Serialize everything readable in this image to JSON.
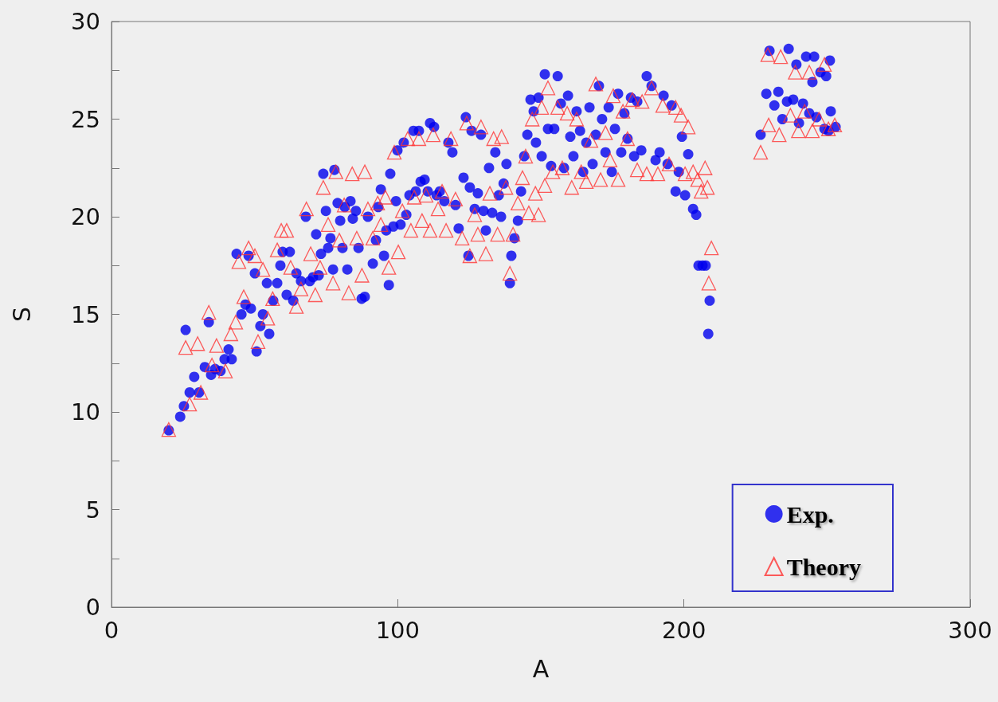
{
  "chart_data": {
    "type": "scatter",
    "xlabel": "A",
    "ylabel": "S",
    "xlim": [
      0,
      300
    ],
    "ylim": [
      0,
      30
    ],
    "xticks": [
      0,
      100,
      200,
      300
    ],
    "yticks": [
      0,
      {
        "value": 2.5,
        "label": null
      },
      5,
      {
        "value": 7.5,
        "label": null
      },
      10,
      {
        "value": 12.5,
        "label": null
      },
      15,
      {
        "value": 17.5,
        "label": null
      },
      20,
      {
        "value": 22.5,
        "label": null
      },
      25,
      {
        "value": 27.5,
        "label": null
      },
      30
    ],
    "grid": false,
    "legend": "bottom right",
    "series": [
      {
        "name": "Exp.",
        "color": "#0000ee",
        "marker": "circle",
        "x": [
          20.0,
          24.0,
          25.3,
          25.9,
          27.3,
          28.9,
          30.6,
          32.6,
          34.0,
          34.8,
          36.2,
          38.1,
          39.5,
          40.9,
          42.0,
          43.7,
          45.4,
          46.8,
          47.9,
          48.7,
          50.1,
          50.7,
          52.0,
          52.9,
          54.3,
          55.1,
          56.5,
          57.9,
          59.0,
          59.8,
          61.2,
          62.3,
          63.5,
          64.6,
          66.2,
          67.9,
          69.3,
          70.4,
          71.5,
          72.4,
          73.2,
          74.0,
          74.9,
          75.7,
          76.5,
          77.4,
          77.9,
          79.0,
          79.9,
          80.7,
          81.5,
          82.4,
          83.5,
          84.3,
          85.4,
          86.3,
          87.4,
          88.5,
          89.6,
          91.3,
          92.4,
          93.2,
          94.1,
          95.2,
          96.0,
          96.9,
          97.4,
          98.5,
          99.4,
          99.9,
          101.0,
          102.1,
          103.0,
          104.1,
          105.5,
          106.3,
          107.4,
          108.0,
          109.4,
          110.5,
          111.3,
          112.7,
          113.6,
          114.7,
          116.3,
          117.7,
          119.1,
          120.2,
          121.3,
          123.0,
          123.8,
          124.7,
          125.2,
          125.8,
          126.9,
          128.0,
          129.1,
          130.0,
          130.8,
          131.9,
          133.0,
          134.1,
          135.3,
          136.1,
          137.0,
          138.0,
          139.2,
          139.7,
          140.8,
          142.0,
          143.1,
          144.2,
          145.3,
          146.4,
          147.5,
          148.3,
          149.2,
          150.3,
          151.4,
          152.5,
          153.6,
          154.7,
          155.9,
          157.0,
          158.1,
          159.5,
          160.3,
          161.4,
          162.5,
          163.7,
          164.8,
          165.9,
          167.0,
          168.1,
          169.2,
          170.3,
          171.4,
          172.6,
          173.7,
          174.8,
          175.9,
          177.0,
          178.1,
          179.2,
          180.3,
          181.5,
          182.6,
          183.7,
          185.1,
          187.0,
          188.7,
          190.1,
          191.5,
          192.9,
          194.3,
          195.7,
          197.1,
          198.2,
          199.3,
          200.4,
          201.5,
          203.2,
          204.3,
          205.1,
          206.5,
          207.6,
          209.0,
          208.5,
          226.8,
          228.8,
          229.9,
          231.6,
          233.0,
          234.4,
          236.0,
          236.6,
          238.2,
          239.3,
          240.2,
          241.6,
          242.7,
          243.8,
          244.9,
          245.5,
          246.3,
          247.7,
          249.1,
          249.7,
          250.5,
          251.0,
          251.3,
          253.0
        ],
        "values": [
          9.06,
          9.76,
          10.3,
          14.2,
          11.0,
          11.8,
          11.0,
          12.3,
          14.6,
          11.9,
          12.2,
          12.1,
          12.7,
          13.2,
          12.7,
          18.1,
          15.0,
          15.5,
          18.0,
          15.3,
          17.1,
          13.1,
          14.4,
          15.0,
          16.6,
          14.0,
          15.7,
          16.6,
          17.5,
          18.2,
          16.0,
          18.2,
          15.7,
          17.1,
          16.7,
          20.0,
          16.7,
          16.9,
          19.1,
          17.0,
          18.1,
          22.2,
          20.3,
          18.4,
          18.9,
          17.3,
          22.4,
          20.7,
          19.8,
          18.4,
          20.5,
          17.3,
          20.8,
          19.9,
          20.3,
          18.4,
          15.8,
          15.9,
          20.0,
          17.6,
          18.8,
          20.5,
          21.4,
          18.0,
          19.3,
          16.5,
          22.2,
          19.5,
          20.8,
          23.4,
          19.6,
          23.8,
          20.1,
          21.1,
          24.4,
          21.3,
          24.4,
          21.8,
          21.9,
          21.3,
          24.8,
          24.6,
          21.1,
          21.3,
          20.8,
          23.8,
          23.3,
          20.6,
          19.4,
          22.0,
          25.1,
          18.0,
          21.5,
          24.4,
          20.4,
          21.2,
          24.2,
          20.3,
          19.3,
          22.5,
          20.2,
          23.3,
          21.1,
          20.0,
          21.7,
          22.7,
          16.6,
          18.0,
          18.9,
          19.8,
          21.3,
          23.1,
          24.2,
          26.0,
          25.4,
          23.8,
          26.1,
          23.1,
          27.3,
          24.5,
          22.6,
          24.5,
          27.2,
          25.8,
          22.5,
          26.2,
          24.1,
          23.1,
          25.4,
          24.4,
          22.3,
          23.8,
          25.6,
          22.7,
          24.2,
          26.7,
          25.0,
          23.3,
          25.6,
          22.3,
          24.5,
          26.3,
          23.3,
          25.3,
          24.0,
          26.1,
          23.1,
          25.9,
          23.4,
          27.2,
          26.7,
          22.9,
          23.3,
          26.2,
          22.7,
          25.7,
          21.3,
          22.3,
          24.1,
          21.1,
          23.2,
          20.4,
          20.1,
          17.5,
          17.5,
          17.5,
          15.7,
          14.0,
          24.2,
          26.3,
          28.5,
          25.7,
          26.4,
          25.0,
          25.9,
          28.6,
          26.0,
          27.8,
          24.8,
          25.8,
          28.2,
          25.3,
          26.9,
          28.2,
          25.1,
          27.4,
          24.5,
          27.2,
          24.4,
          28.0,
          25.4,
          24.6
        ]
      },
      {
        "name": "Theory",
        "color": "#ff3333",
        "marker": "triangle",
        "x": [
          20.0,
          25.9,
          27.3,
          30.1,
          31.2,
          34.0,
          35.1,
          36.7,
          39.8,
          41.7,
          43.4,
          44.5,
          46.2,
          47.9,
          50.1,
          51.2,
          52.9,
          54.6,
          56.3,
          57.9,
          59.3,
          61.2,
          62.6,
          64.6,
          66.2,
          68.1,
          69.6,
          71.2,
          72.9,
          74.0,
          75.7,
          77.4,
          78.4,
          79.6,
          81.3,
          82.9,
          84.1,
          85.7,
          87.5,
          88.5,
          89.6,
          91.3,
          93.0,
          94.1,
          95.7,
          96.9,
          98.8,
          100.2,
          101.6,
          103.5,
          104.6,
          105.8,
          107.4,
          108.5,
          109.9,
          111.3,
          112.4,
          114.1,
          115.5,
          116.9,
          118.6,
          120.2,
          122.5,
          124.1,
          125.2,
          126.9,
          128.0,
          129.1,
          130.8,
          132.2,
          133.5,
          134.9,
          136.3,
          137.8,
          139.2,
          140.3,
          142.0,
          143.6,
          144.7,
          145.8,
          147.0,
          148.1,
          149.2,
          150.3,
          151.4,
          152.5,
          154.2,
          155.9,
          157.5,
          159.2,
          160.8,
          162.5,
          164.1,
          165.9,
          167.5,
          169.2,
          170.9,
          172.6,
          174.2,
          175.3,
          177.0,
          178.7,
          180.3,
          182.0,
          183.7,
          185.4,
          187.0,
          188.7,
          190.9,
          192.6,
          194.8,
          197.1,
          199.0,
          200.4,
          201.5,
          203.2,
          204.8,
          206.0,
          207.4,
          208.2,
          208.7,
          209.6,
          226.8,
          229.3,
          229.6,
          233.3,
          233.8,
          237.2,
          238.9,
          240.0,
          242.2,
          243.8,
          244.9,
          247.2,
          249.1,
          250.5,
          252.7
        ],
        "values": [
          9.1,
          13.3,
          10.4,
          13.5,
          11.0,
          15.1,
          12.4,
          13.4,
          12.1,
          14.0,
          14.6,
          17.7,
          15.9,
          18.4,
          18.0,
          13.6,
          17.3,
          14.8,
          15.8,
          18.3,
          19.3,
          19.3,
          17.4,
          15.4,
          16.3,
          20.4,
          18.1,
          16.0,
          17.4,
          21.5,
          19.6,
          16.6,
          22.3,
          18.8,
          20.6,
          16.1,
          22.2,
          18.9,
          17.0,
          22.3,
          20.4,
          18.9,
          20.7,
          19.6,
          21.0,
          17.4,
          23.3,
          18.2,
          20.3,
          24.0,
          19.3,
          21.0,
          24.0,
          19.8,
          21.1,
          19.3,
          24.2,
          20.4,
          21.3,
          19.3,
          24.0,
          20.9,
          18.9,
          24.8,
          18.0,
          20.1,
          19.1,
          24.6,
          18.1,
          21.2,
          24.0,
          19.1,
          24.1,
          21.5,
          17.1,
          19.1,
          20.7,
          22.0,
          23.1,
          20.2,
          25.0,
          21.2,
          20.1,
          25.6,
          21.6,
          26.6,
          22.3,
          25.6,
          22.5,
          25.3,
          21.5,
          25.0,
          22.3,
          21.8,
          23.9,
          26.8,
          21.9,
          24.3,
          22.9,
          26.2,
          21.9,
          25.4,
          24.0,
          26.0,
          22.4,
          25.9,
          22.2,
          26.6,
          22.2,
          25.7,
          22.7,
          25.6,
          25.2,
          22.2,
          24.6,
          22.3,
          21.9,
          21.3,
          22.5,
          21.5,
          16.6,
          18.4,
          23.3,
          28.3,
          24.7,
          24.2,
          28.2,
          25.2,
          27.4,
          24.4,
          25.4,
          27.4,
          24.4,
          25.0,
          27.8,
          24.5,
          24.7
        ]
      }
    ]
  }
}
